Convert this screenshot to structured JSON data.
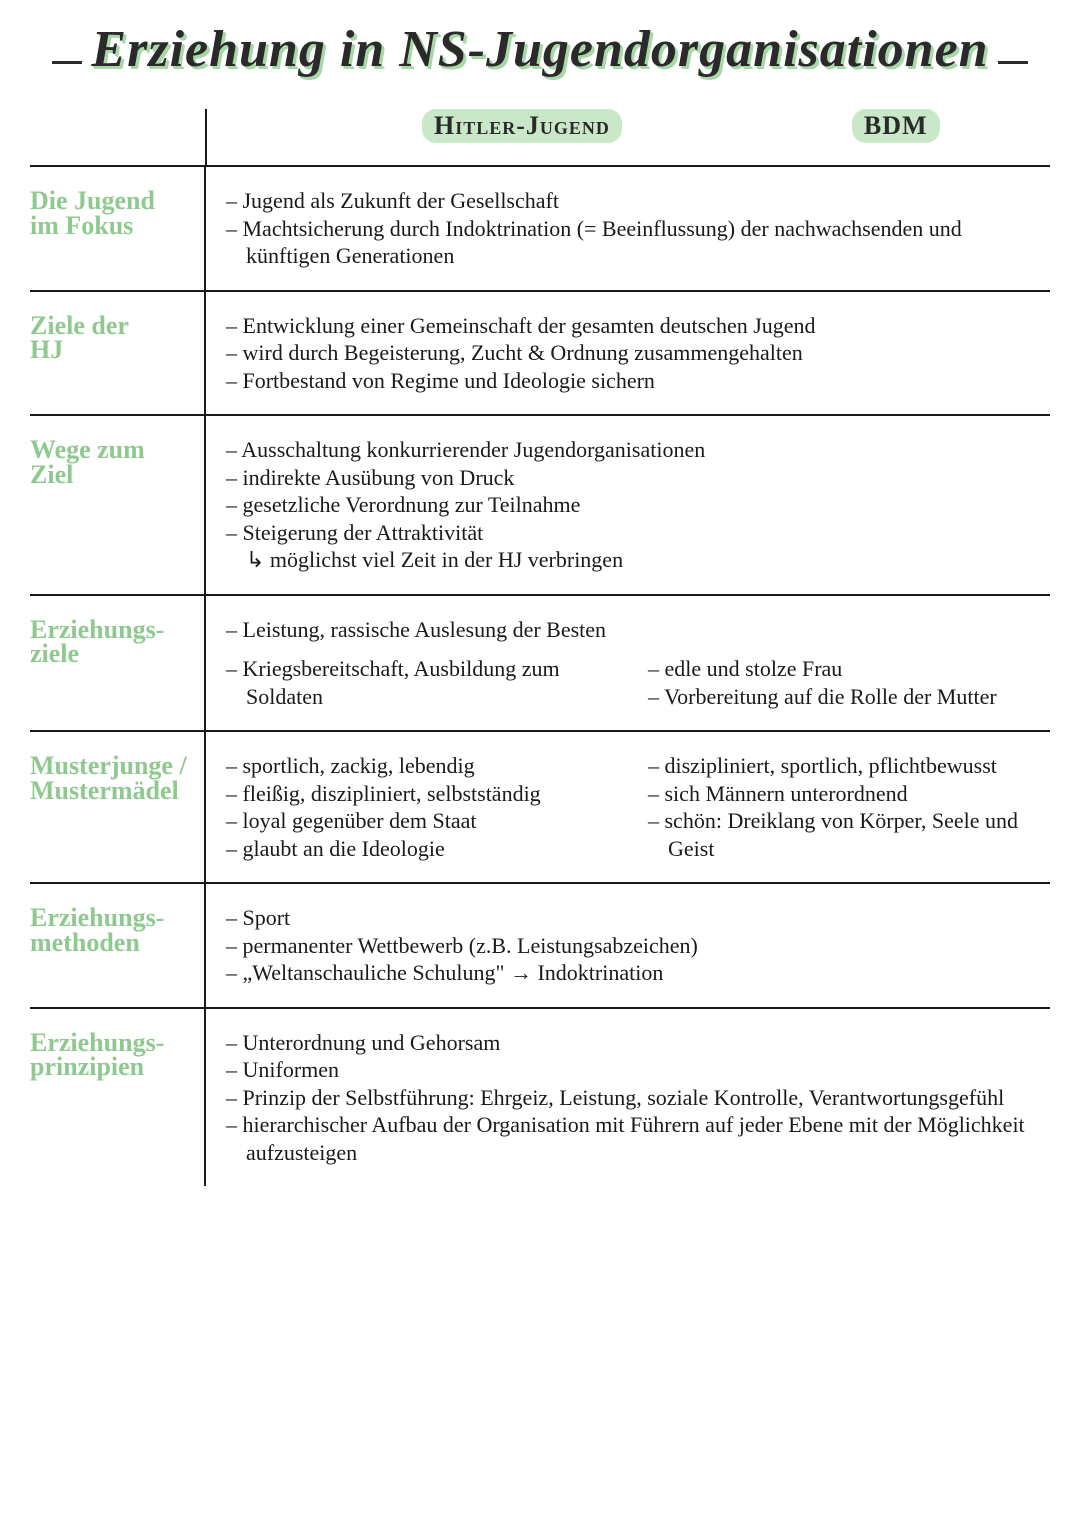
{
  "title": "Erziehung in NS-Jugendorganisationen",
  "columns": {
    "left": "Hitler-Jugend",
    "right": "BDM"
  },
  "accent_color": "#8fc98f",
  "highlight_color": "#c8e8c8",
  "text_color": "#1a1a1a",
  "background_color": "#ffffff",
  "title_fontsize": 52,
  "label_fontsize": 26,
  "body_fontsize": 22,
  "rows": [
    {
      "label": "Die Jugend\nim Fokus",
      "shared": [
        "– Jugend als Zukunft der Gesellschaft",
        "– Machtsicherung durch Indoktrination (= Beeinflussung) der nachwachsenden und künftigen Generationen"
      ]
    },
    {
      "label": "Ziele der\nHJ",
      "shared": [
        "– Entwicklung einer Gemeinschaft der gesamten deutschen Jugend",
        "– wird durch Begeisterung, Zucht & Ordnung zusammengehalten",
        "– Fortbestand von Regime und Ideologie sichern"
      ]
    },
    {
      "label": "Wege zum\nZiel",
      "shared": [
        "– Ausschaltung konkurrierender Jugendorganisationen",
        "– indirekte Ausübung von Druck",
        "– gesetzliche Verordnung zur Teilnahme",
        "– Steigerung der Attraktivität",
        "↳ möglichst viel Zeit in der HJ verbringen"
      ]
    },
    {
      "label": "Erziehungs-\nziele",
      "shared_top": "– Leistung, rassische Auslesung der Besten",
      "left": [
        "– Kriegsbereitschaft, Ausbildung zum Soldaten"
      ],
      "right": [
        "– edle und stolze Frau",
        "– Vorbereitung auf die Rolle der Mutter"
      ]
    },
    {
      "label": "Musterjunge /\nMustermädel",
      "left": [
        "– sportlich, zackig, lebendig",
        "– fleißig, diszipliniert, selbstständig",
        "– loyal gegenüber dem Staat",
        "– glaubt an die Ideologie"
      ],
      "right": [
        "– diszipliniert, sportlich, pflichtbewusst",
        "– sich Männern unterordnend",
        "– schön: Dreiklang von Körper, Seele und Geist"
      ]
    },
    {
      "label": "Erziehungs-\nmethoden",
      "shared": [
        "– Sport",
        "– permanenter Wettbewerb (z.B. Leistungsabzeichen)",
        "– „Weltanschauliche Schulung\" → Indoktrination"
      ]
    },
    {
      "label": "Erziehungs-\nprinzipien",
      "shared": [
        "– Unterordnung und Gehorsam",
        "– Uniformen",
        "– Prinzip der Selbstführung: Ehrgeiz, Leistung, soziale Kontrolle, Verantwortungsgefühl",
        "",
        "– hierarchischer Aufbau der Organisation mit Führern auf jeder Ebene mit der Möglichkeit aufzusteigen"
      ]
    }
  ]
}
